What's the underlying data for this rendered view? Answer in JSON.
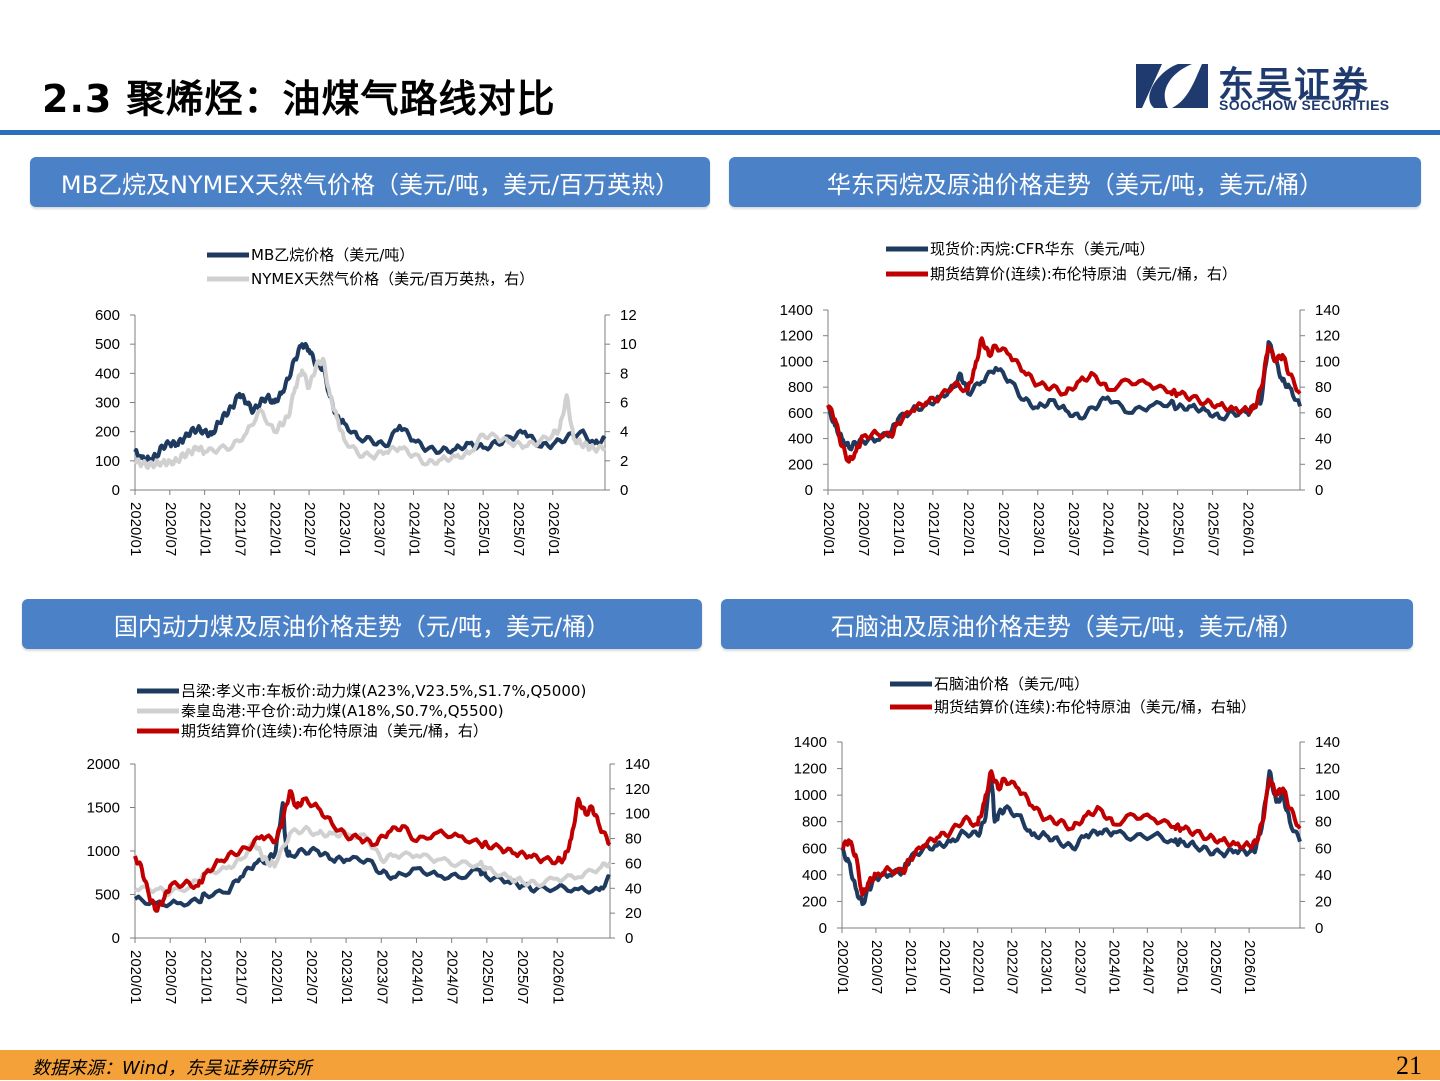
{
  "page": {
    "title": "2.3 聚烯烃：油煤气路线对比",
    "logo_cn": "东吴证券",
    "logo_en": "SOOCHOW SECURITIES",
    "source": "数据来源：Wind，东吴证券研究所",
    "page_number": "21",
    "colors": {
      "navy": "#1f3a5f",
      "red": "#c00000",
      "gray": "#d0d0d0",
      "header_blue": "#4b81c7",
      "footer_orange": "#f4a13a",
      "rule_blue": "#2a6fbd"
    }
  },
  "chart_data": [
    {
      "id": "c1",
      "header": "MB乙烷及NYMEX天然气价格（美元/吨，美元/百万英热）",
      "type": "line",
      "x_ticks": [
        "2020/01",
        "2020/07",
        "2021/01",
        "2021/07",
        "2022/01",
        "2022/07",
        "2023/01",
        "2023/07",
        "2024/01",
        "2024/07",
        "2025/01",
        "2025/07",
        "2026/01"
      ],
      "x_range": [
        2020.0,
        2026.75
      ],
      "ylim_left": [
        0,
        600
      ],
      "yticks_left": [
        "0",
        "100",
        "200",
        "300",
        "400",
        "500",
        "600"
      ],
      "ylim_right": [
        0,
        12
      ],
      "yticks_right": [
        "0",
        "2",
        "4",
        "6",
        "8",
        "10",
        "12"
      ],
      "series": [
        {
          "name": "MB乙烷价格（美元/吨）",
          "color": "#1f3a5f",
          "axis": "left",
          "width": 4,
          "x": [
            2020.0,
            2020.1,
            2020.2,
            2020.3,
            2020.4,
            2020.5,
            2020.6,
            2020.7,
            2020.8,
            2020.9,
            2021.0,
            2021.1,
            2021.2,
            2021.3,
            2021.4,
            2021.5,
            2021.6,
            2021.7,
            2021.8,
            2021.9,
            2022.0,
            2022.1,
            2022.2,
            2022.3,
            2022.4,
            2022.5,
            2022.6,
            2022.7,
            2022.8,
            2022.9,
            2023.0,
            2023.2,
            2023.4,
            2023.6,
            2023.8,
            2024.0,
            2024.2,
            2024.4,
            2024.6,
            2024.8,
            2025.0,
            2025.2,
            2025.4,
            2025.6,
            2025.8,
            2026.0,
            2026.2,
            2026.4,
            2026.6,
            2026.75
          ],
          "y": [
            130,
            110,
            105,
            115,
            150,
            160,
            155,
            175,
            200,
            210,
            200,
            190,
            230,
            260,
            285,
            330,
            300,
            270,
            300,
            320,
            300,
            330,
            380,
            450,
            500,
            480,
            430,
            420,
            320,
            250,
            230,
            180,
            170,
            150,
            220,
            170,
            140,
            135,
            140,
            160,
            145,
            160,
            180,
            200,
            150,
            155,
            180,
            200,
            160,
            175
          ]
        },
        {
          "name": "NYMEX天然气价格（美元/百万英热，右）",
          "color": "#d0d0d0",
          "axis": "right",
          "width": 4,
          "x": [
            2020.0,
            2020.1,
            2020.2,
            2020.3,
            2020.4,
            2020.5,
            2020.6,
            2020.7,
            2020.8,
            2020.9,
            2021.0,
            2021.2,
            2021.4,
            2021.6,
            2021.8,
            2022.0,
            2022.1,
            2022.2,
            2022.3,
            2022.4,
            2022.5,
            2022.6,
            2022.7,
            2022.8,
            2022.9,
            2023.0,
            2023.2,
            2023.4,
            2023.6,
            2023.8,
            2024.0,
            2024.2,
            2024.4,
            2024.6,
            2024.8,
            2025.0,
            2025.2,
            2025.4,
            2025.6,
            2025.8,
            2026.0,
            2026.1,
            2026.2,
            2026.3,
            2026.4,
            2026.5,
            2026.6,
            2026.75
          ],
          "y": [
            2.0,
            1.8,
            1.7,
            1.8,
            1.9,
            1.9,
            2.0,
            2.4,
            2.6,
            2.9,
            2.6,
            2.8,
            3.0,
            3.9,
            5.5,
            4.0,
            4.5,
            5.0,
            7.0,
            8.2,
            7.0,
            8.5,
            9.0,
            6.5,
            5.0,
            3.5,
            2.5,
            2.3,
            2.6,
            2.9,
            2.4,
            1.8,
            2.1,
            2.3,
            2.5,
            3.8,
            3.6,
            3.2,
            3.0,
            3.3,
            3.8,
            4.2,
            6.5,
            3.5,
            3.2,
            3.0,
            2.8,
            2.9
          ]
        }
      ]
    },
    {
      "id": "c2",
      "header": "华东丙烷及原油价格走势（美元/吨，美元/桶）",
      "type": "line",
      "x_ticks": [
        "2020/01",
        "2020/07",
        "2021/01",
        "2021/07",
        "2022/01",
        "2022/07",
        "2023/01",
        "2023/07",
        "2024/01",
        "2024/07",
        "2025/01",
        "2025/07",
        "2026/01"
      ],
      "x_range": [
        2020.0,
        2026.75
      ],
      "ylim_left": [
        0,
        1400
      ],
      "yticks_left": [
        "0",
        "200",
        "400",
        "600",
        "800",
        "1000",
        "1200",
        "1400"
      ],
      "ylim_right": [
        0,
        140
      ],
      "yticks_right": [
        "0",
        "20",
        "40",
        "60",
        "80",
        "100",
        "120",
        "140"
      ],
      "series": [
        {
          "name": "现货价:丙烷:CFR华东（美元/吨）",
          "color": "#1f3a5f",
          "axis": "left",
          "width": 4,
          "x": [
            2020.0,
            2020.1,
            2020.2,
            2020.3,
            2020.4,
            2020.5,
            2020.7,
            2020.9,
            2021.0,
            2021.2,
            2021.4,
            2021.6,
            2021.8,
            2021.9,
            2022.0,
            2022.2,
            2022.4,
            2022.6,
            2022.8,
            2023.0,
            2023.2,
            2023.4,
            2023.6,
            2023.8,
            2024.0,
            2024.3,
            2024.6,
            2024.9,
            2025.0,
            2025.2,
            2025.4,
            2025.6,
            2025.8,
            2026.0,
            2026.1,
            2026.2,
            2026.3,
            2026.4,
            2026.5,
            2026.6,
            2026.75
          ],
          "y": [
            650,
            500,
            400,
            330,
            360,
            380,
            390,
            450,
            550,
            620,
            660,
            720,
            800,
            900,
            750,
            840,
            950,
            850,
            700,
            640,
            700,
            620,
            560,
            640,
            720,
            600,
            650,
            680,
            640,
            650,
            620,
            560,
            600,
            600,
            650,
            700,
            1150,
            1000,
            850,
            800,
            650
          ]
        },
        {
          "name": "期货结算价(连续):布伦特原油（美元/桶，右）",
          "color": "#c00000",
          "axis": "right",
          "width": 4,
          "x": [
            2020.0,
            2020.1,
            2020.2,
            2020.3,
            2020.4,
            2020.5,
            2020.7,
            2020.9,
            2021.0,
            2021.2,
            2021.4,
            2021.6,
            2021.8,
            2022.0,
            2022.1,
            2022.2,
            2022.3,
            2022.4,
            2022.6,
            2022.8,
            2023.0,
            2023.2,
            2023.4,
            2023.6,
            2023.8,
            2024.0,
            2024.3,
            2024.6,
            2024.9,
            2025.0,
            2025.2,
            2025.4,
            2025.6,
            2025.8,
            2026.0,
            2026.1,
            2026.2,
            2026.3,
            2026.4,
            2026.5,
            2026.6,
            2026.75
          ],
          "y": [
            66,
            55,
            34,
            22,
            30,
            42,
            44,
            42,
            52,
            62,
            68,
            72,
            82,
            78,
            95,
            118,
            105,
            112,
            105,
            92,
            82,
            80,
            75,
            85,
            90,
            78,
            85,
            82,
            76,
            75,
            72,
            68,
            66,
            63,
            62,
            64,
            80,
            112,
            100,
            105,
            90,
            75
          ]
        }
      ]
    },
    {
      "id": "c3",
      "header": "国内动力煤及原油价格走势（元/吨，美元/桶）",
      "type": "line",
      "x_ticks": [
        "2020/01",
        "2020/07",
        "2021/01",
        "2021/07",
        "2022/01",
        "2022/07",
        "2023/01",
        "2023/07",
        "2024/01",
        "2024/07",
        "2025/01",
        "2025/07",
        "2026/01"
      ],
      "x_range": [
        2020.0,
        2026.75
      ],
      "ylim_left": [
        0,
        2000
      ],
      "yticks_left": [
        "0",
        "500",
        "1000",
        "1500",
        "2000"
      ],
      "ylim_right": [
        0,
        140
      ],
      "yticks_right": [
        "0",
        "20",
        "40",
        "60",
        "80",
        "100",
        "120",
        "140"
      ],
      "series": [
        {
          "name": "吕梁:孝义市:车板价:动力煤(A23%,V23.5%,S1.7%,Q5000)",
          "color": "#1f3a5f",
          "axis": "left",
          "width": 4,
          "x": [
            2020.0,
            2020.3,
            2020.6,
            2020.9,
            2021.0,
            2021.3,
            2021.5,
            2021.7,
            2021.9,
            2022.0,
            2022.1,
            2022.15,
            2022.2,
            2022.4,
            2022.6,
            2022.8,
            2023.0,
            2023.3,
            2023.5,
            2023.7,
            2024.0,
            2024.3,
            2024.6,
            2024.9,
            2025.0,
            2025.3,
            2025.5,
            2025.7,
            2026.0,
            2026.3,
            2026.6,
            2026.75
          ],
          "y": [
            450,
            400,
            400,
            420,
            500,
            520,
            700,
            850,
            900,
            1000,
            1550,
            1000,
            950,
            1000,
            1000,
            900,
            900,
            900,
            750,
            700,
            800,
            720,
            700,
            780,
            700,
            650,
            600,
            560,
            580,
            560,
            550,
            700
          ]
        },
        {
          "name": "秦皇岛港:平仓价:动力煤(A18%,S0.7%,Q5500)",
          "color": "#d0d0d0",
          "axis": "left",
          "width": 4,
          "x": [
            2020.0,
            2020.3,
            2020.5,
            2020.8,
            2021.0,
            2021.3,
            2021.5,
            2021.7,
            2021.8,
            2021.9,
            2022.0,
            2022.2,
            2022.4,
            2022.6,
            2022.8,
            2023.0,
            2023.3,
            2023.5,
            2023.7,
            2024.0,
            2024.3,
            2024.6,
            2024.9,
            2025.0,
            2025.3,
            2025.5,
            2025.7,
            2026.0,
            2026.3,
            2026.6,
            2026.75
          ],
          "y": [
            560,
            560,
            520,
            600,
            760,
            800,
            900,
            1100,
            950,
            850,
            850,
            1200,
            1250,
            1200,
            1200,
            1200,
            1150,
            900,
            950,
            950,
            900,
            850,
            850,
            800,
            700,
            650,
            620,
            680,
            700,
            800,
            870
          ]
        },
        {
          "name": "期货结算价(连续):布伦特原油（美元/桶，右）",
          "color": "#c00000",
          "axis": "right",
          "width": 4,
          "x": [
            2020.0,
            2020.1,
            2020.2,
            2020.3,
            2020.4,
            2020.5,
            2020.7,
            2020.9,
            2021.0,
            2021.2,
            2021.4,
            2021.6,
            2021.8,
            2022.0,
            2022.1,
            2022.2,
            2022.3,
            2022.4,
            2022.6,
            2022.8,
            2023.0,
            2023.2,
            2023.4,
            2023.6,
            2023.8,
            2024.0,
            2024.3,
            2024.6,
            2024.9,
            2025.0,
            2025.2,
            2025.4,
            2025.6,
            2025.8,
            2026.0,
            2026.1,
            2026.2,
            2026.3,
            2026.4,
            2026.5,
            2026.6,
            2026.75
          ],
          "y": [
            66,
            55,
            34,
            22,
            30,
            42,
            44,
            42,
            52,
            62,
            68,
            72,
            82,
            78,
            95,
            118,
            105,
            112,
            105,
            92,
            82,
            80,
            75,
            85,
            90,
            78,
            85,
            82,
            76,
            75,
            72,
            68,
            66,
            63,
            62,
            64,
            80,
            112,
            100,
            105,
            90,
            75
          ]
        }
      ]
    },
    {
      "id": "c4",
      "header": "石脑油及原油价格走势（美元/吨，美元/桶）",
      "type": "line",
      "x_ticks": [
        "2020/01",
        "2020/07",
        "2021/01",
        "2021/07",
        "2022/01",
        "2022/07",
        "2023/01",
        "2023/07",
        "2024/01",
        "2024/07",
        "2025/01",
        "2025/07",
        "2026/01"
      ],
      "x_range": [
        2020.0,
        2026.75
      ],
      "ylim_left": [
        0,
        1400
      ],
      "yticks_left": [
        "0",
        "200",
        "400",
        "600",
        "800",
        "1000",
        "1200",
        "1400"
      ],
      "ylim_right": [
        0,
        140
      ],
      "yticks_right": [
        "0",
        "20",
        "40",
        "60",
        "80",
        "100",
        "120",
        "140"
      ],
      "series": [
        {
          "name": "石脑油价格（美元/吨）",
          "color": "#1f3a5f",
          "axis": "left",
          "width": 4,
          "x": [
            2020.0,
            2020.1,
            2020.2,
            2020.3,
            2020.4,
            2020.5,
            2020.7,
            2020.9,
            2021.0,
            2021.2,
            2021.4,
            2021.6,
            2021.8,
            2022.0,
            2022.1,
            2022.2,
            2022.25,
            2022.3,
            2022.4,
            2022.6,
            2022.8,
            2023.0,
            2023.2,
            2023.4,
            2023.6,
            2023.8,
            2024.0,
            2024.3,
            2024.6,
            2024.9,
            2025.0,
            2025.2,
            2025.4,
            2025.6,
            2025.8,
            2026.0,
            2026.1,
            2026.2,
            2026.3,
            2026.4,
            2026.5,
            2026.6,
            2026.75
          ],
          "y": [
            580,
            500,
            300,
            180,
            300,
            380,
            400,
            430,
            520,
            600,
            620,
            650,
            720,
            700,
            800,
            1150,
            800,
            850,
            900,
            850,
            700,
            700,
            650,
            600,
            700,
            720,
            720,
            680,
            700,
            650,
            650,
            620,
            580,
            560,
            580,
            570,
            600,
            800,
            1180,
            950,
            1000,
            800,
            650
          ]
        },
        {
          "name": "期货结算价(连续):布伦特原油（美元/桶，右轴）",
          "color": "#c00000",
          "axis": "right",
          "width": 4,
          "x": [
            2020.0,
            2020.1,
            2020.2,
            2020.3,
            2020.4,
            2020.5,
            2020.7,
            2020.9,
            2021.0,
            2021.2,
            2021.4,
            2021.6,
            2021.8,
            2022.0,
            2022.1,
            2022.2,
            2022.3,
            2022.4,
            2022.6,
            2022.8,
            2023.0,
            2023.2,
            2023.4,
            2023.6,
            2023.8,
            2024.0,
            2024.3,
            2024.6,
            2024.9,
            2025.0,
            2025.2,
            2025.4,
            2025.6,
            2025.8,
            2026.0,
            2026.1,
            2026.2,
            2026.3,
            2026.4,
            2026.5,
            2026.6,
            2026.75
          ],
          "y": [
            60,
            66,
            55,
            25,
            35,
            40,
            44,
            42,
            52,
            62,
            68,
            72,
            82,
            78,
            95,
            118,
            105,
            112,
            105,
            92,
            82,
            80,
            75,
            85,
            90,
            78,
            85,
            82,
            76,
            75,
            72,
            68,
            66,
            63,
            62,
            64,
            80,
            112,
            100,
            105,
            90,
            75
          ]
        }
      ]
    }
  ]
}
